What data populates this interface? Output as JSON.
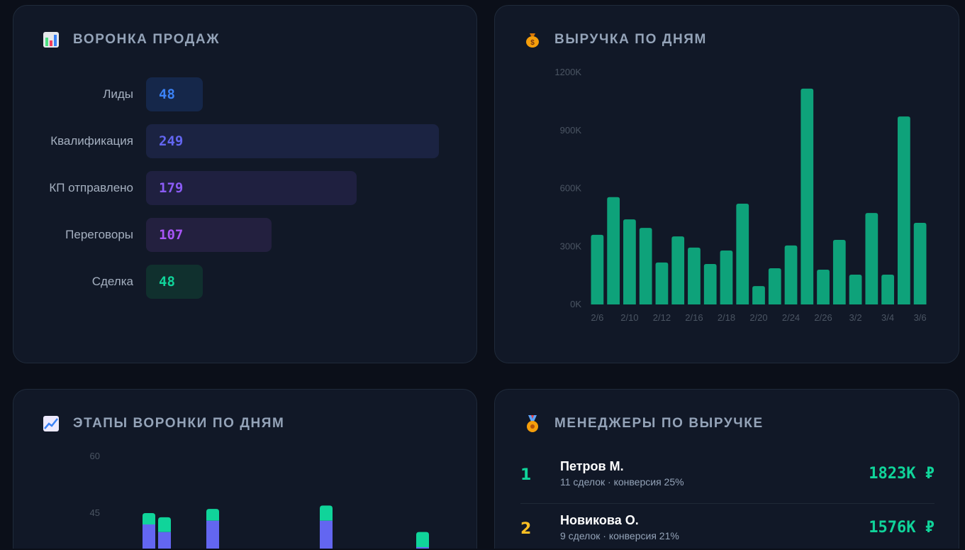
{
  "funnel": {
    "title": "ВОРОНКА ПРОДАЖ",
    "icon": "bar-chart-icon",
    "stages": [
      {
        "label": "Лиды",
        "value": 48,
        "color": "#3b82f6",
        "bg": "#15274a"
      },
      {
        "label": "Квалификация",
        "value": 249,
        "color": "#6366f1",
        "bg": "#1b2342"
      },
      {
        "label": "КП отправлено",
        "value": 179,
        "color": "#8b5cf6",
        "bg": "#1f2040"
      },
      {
        "label": "Переговоры",
        "value": 107,
        "color": "#a855f7",
        "bg": "#23203f"
      },
      {
        "label": "Сделка",
        "value": 48,
        "color": "#10d49a",
        "bg": "#10302e"
      }
    ]
  },
  "revenue": {
    "title": "ВЫРУЧКА ПО ДНЯМ",
    "icon": "money-bag-icon",
    "chart_data": {
      "type": "bar",
      "categories": [
        "2/6",
        "",
        "2/10",
        "",
        "2/12",
        "",
        "2/16",
        "",
        "2/18",
        "",
        "2/20",
        "",
        "2/24",
        "",
        "2/26",
        "",
        "3/2",
        "",
        "3/4",
        "",
        "3/6"
      ],
      "values": [
        360,
        555,
        440,
        396,
        217,
        352,
        294,
        209,
        279,
        521,
        95,
        187,
        305,
        1116,
        180,
        334,
        154,
        473,
        154,
        972,
        422
      ],
      "unit": "K",
      "yticks": [
        "0K",
        "300K",
        "600K",
        "900K",
        "1200K"
      ],
      "ylim": [
        0,
        1200
      ],
      "color": "#0ea27a"
    }
  },
  "stages_by_day": {
    "title": "ЭТАПЫ ВОРОНКИ ПО ДНЯМ",
    "icon": "chart-increasing-icon",
    "chart_data": {
      "type": "bar",
      "stacked": true,
      "yticks": [
        "45",
        "60"
      ],
      "visible_bars": [
        {
          "lower": 42,
          "total": 45
        },
        {
          "lower": 40,
          "total": 43.9
        },
        {
          "lower": 43,
          "total": 46.1
        },
        {
          "lower": 43,
          "total": 47
        },
        {
          "lower": 36,
          "total": 40
        }
      ],
      "colors": [
        "#6366f1",
        "#10d49a"
      ]
    }
  },
  "managers": {
    "title": "МЕНЕДЖЕРЫ ПО ВЫРУЧКЕ",
    "icon": "medal-icon",
    "items": [
      {
        "rank": "1",
        "name": "Петров М.",
        "sub": "11 сделок · конверсия 25%",
        "value": "1823K ₽",
        "rank_color": "#10d49a"
      },
      {
        "rank": "2",
        "name": "Новикова О.",
        "sub": "9 сделок · конверсия 21%",
        "value": "1576K ₽",
        "rank_color": "#fbbf24"
      }
    ]
  }
}
